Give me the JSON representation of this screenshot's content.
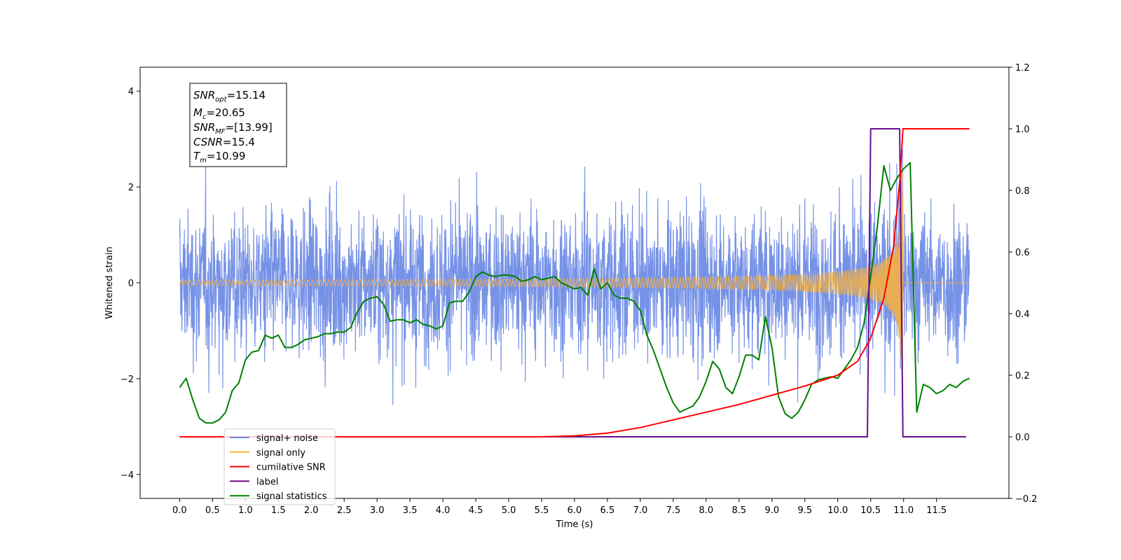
{
  "chart_data": {
    "type": "line",
    "xlabel": "Time (s)",
    "ylabel": "Whitened strain",
    "xlim": [
      -0.6,
      12.6
    ],
    "ylim": [
      -4.5,
      4.5
    ],
    "y2lim": [
      -0.2,
      1.2
    ],
    "grid": false,
    "legend_placement": "lower-left",
    "x_ticks": [
      "0.0",
      "0.5",
      "1.0",
      "1.5",
      "2.0",
      "2.5",
      "3.0",
      "3.5",
      "4.0",
      "4.5",
      "5.0",
      "5.5",
      "6.0",
      "6.5",
      "7.0",
      "7.5",
      "8.0",
      "8.5",
      "9.0",
      "9.5",
      "10.0",
      "10.5",
      "11.0",
      "11.5"
    ],
    "y_ticks": [
      "4",
      "2",
      "0",
      "−2",
      "−4"
    ],
    "y2_ticks": [
      "1.2",
      "1.0",
      "0.8",
      "0.6",
      "0.4",
      "0.2",
      "0.0",
      "−0.2"
    ],
    "annotation": {
      "lines": [
        {
          "base": "SNR",
          "sub": "opt",
          "value": "=15.14"
        },
        {
          "base": "M",
          "sub": "c",
          "value": "=20.65"
        },
        {
          "base": "SNR",
          "sub": "MF",
          "value": "=[13.99]"
        },
        {
          "base": "CSNR",
          "sub": "",
          "value": "=15.4"
        },
        {
          "base": "T",
          "sub": "m",
          "value": "=10.99"
        }
      ]
    },
    "series": [
      {
        "name": "signal+ noise",
        "color": "#6f8ce6",
        "axis": "left",
        "description_kind": "noise",
        "envelope_sigma": 1.0
      },
      {
        "name": "signal only",
        "color": "#f5b041",
        "axis": "left",
        "merger_time": 10.99
      },
      {
        "name": "cumilative SNR",
        "color": "#ff0000",
        "axis": "right",
        "x": [
          0,
          5.5,
          6.0,
          6.5,
          7.0,
          7.5,
          8.0,
          8.5,
          9.0,
          9.5,
          10.0,
          10.3,
          10.5,
          10.7,
          10.85,
          10.95,
          10.99,
          11.0,
          11.5,
          12.0
        ],
        "y": [
          0,
          0.0,
          0.003,
          0.012,
          0.03,
          0.055,
          0.08,
          0.105,
          0.135,
          0.165,
          0.2,
          0.245,
          0.32,
          0.45,
          0.62,
          0.85,
          1.0,
          1.0,
          1.0,
          1.0
        ]
      },
      {
        "name": "label",
        "color": "#6a0d91",
        "axis": "right",
        "x": [
          0,
          10.45,
          10.5,
          10.94,
          10.99,
          11.0,
          11.95
        ],
        "y": [
          0,
          0,
          1.0,
          1.0,
          0,
          0,
          0
        ]
      },
      {
        "name": "signal statistics",
        "color": "#008000",
        "axis": "right",
        "x": [
          0.0,
          0.1,
          0.2,
          0.3,
          0.4,
          0.5,
          0.6,
          0.7,
          0.8,
          0.9,
          1.0,
          1.1,
          1.2,
          1.3,
          1.4,
          1.5,
          1.6,
          1.7,
          1.8,
          1.9,
          2.0,
          2.1,
          2.2,
          2.3,
          2.4,
          2.5,
          2.6,
          2.7,
          2.8,
          2.9,
          3.0,
          3.1,
          3.2,
          3.3,
          3.4,
          3.5,
          3.6,
          3.7,
          3.8,
          3.9,
          4.0,
          4.1,
          4.2,
          4.3,
          4.4,
          4.5,
          4.6,
          4.7,
          4.8,
          4.9,
          5.0,
          5.1,
          5.2,
          5.3,
          5.4,
          5.5,
          5.6,
          5.7,
          5.8,
          5.9,
          6.0,
          6.1,
          6.2,
          6.3,
          6.4,
          6.5,
          6.6,
          6.7,
          6.8,
          6.9,
          7.0,
          7.1,
          7.2,
          7.3,
          7.4,
          7.5,
          7.6,
          7.7,
          7.8,
          7.9,
          8.0,
          8.1,
          8.2,
          8.3,
          8.4,
          8.5,
          8.6,
          8.7,
          8.8,
          8.9,
          9.0,
          9.1,
          9.2,
          9.3,
          9.4,
          9.5,
          9.6,
          9.7,
          9.8,
          9.9,
          10.0,
          10.1,
          10.2,
          10.3,
          10.4,
          10.5,
          10.6,
          10.7,
          10.8,
          10.9,
          11.0,
          11.1,
          11.2,
          11.3,
          11.4,
          11.5,
          11.6,
          11.7,
          11.8,
          11.9,
          12.0
        ],
        "y": [
          0.16,
          0.19,
          0.12,
          0.06,
          0.045,
          0.045,
          0.055,
          0.08,
          0.15,
          0.175,
          0.25,
          0.275,
          0.28,
          0.33,
          0.32,
          0.33,
          0.29,
          0.29,
          0.3,
          0.315,
          0.32,
          0.325,
          0.335,
          0.335,
          0.34,
          0.34,
          0.355,
          0.405,
          0.44,
          0.45,
          0.455,
          0.43,
          0.375,
          0.38,
          0.38,
          0.37,
          0.38,
          0.365,
          0.36,
          0.35,
          0.36,
          0.435,
          0.44,
          0.44,
          0.47,
          0.52,
          0.535,
          0.525,
          0.52,
          0.525,
          0.525,
          0.52,
          0.505,
          0.51,
          0.52,
          0.51,
          0.515,
          0.52,
          0.5,
          0.49,
          0.48,
          0.485,
          0.46,
          0.545,
          0.48,
          0.5,
          0.46,
          0.45,
          0.45,
          0.44,
          0.41,
          0.33,
          0.28,
          0.22,
          0.16,
          0.11,
          0.08,
          0.09,
          0.1,
          0.13,
          0.18,
          0.245,
          0.22,
          0.16,
          0.14,
          0.195,
          0.265,
          0.265,
          0.25,
          0.39,
          0.29,
          0.13,
          0.075,
          0.06,
          0.08,
          0.12,
          0.17,
          0.185,
          0.19,
          0.195,
          0.19,
          0.22,
          0.25,
          0.29,
          0.37,
          0.52,
          0.68,
          0.88,
          0.8,
          0.84,
          0.87,
          0.89,
          0.08,
          0.17,
          0.16,
          0.14,
          0.15,
          0.17,
          0.16,
          0.18,
          0.19
        ]
      }
    ]
  }
}
